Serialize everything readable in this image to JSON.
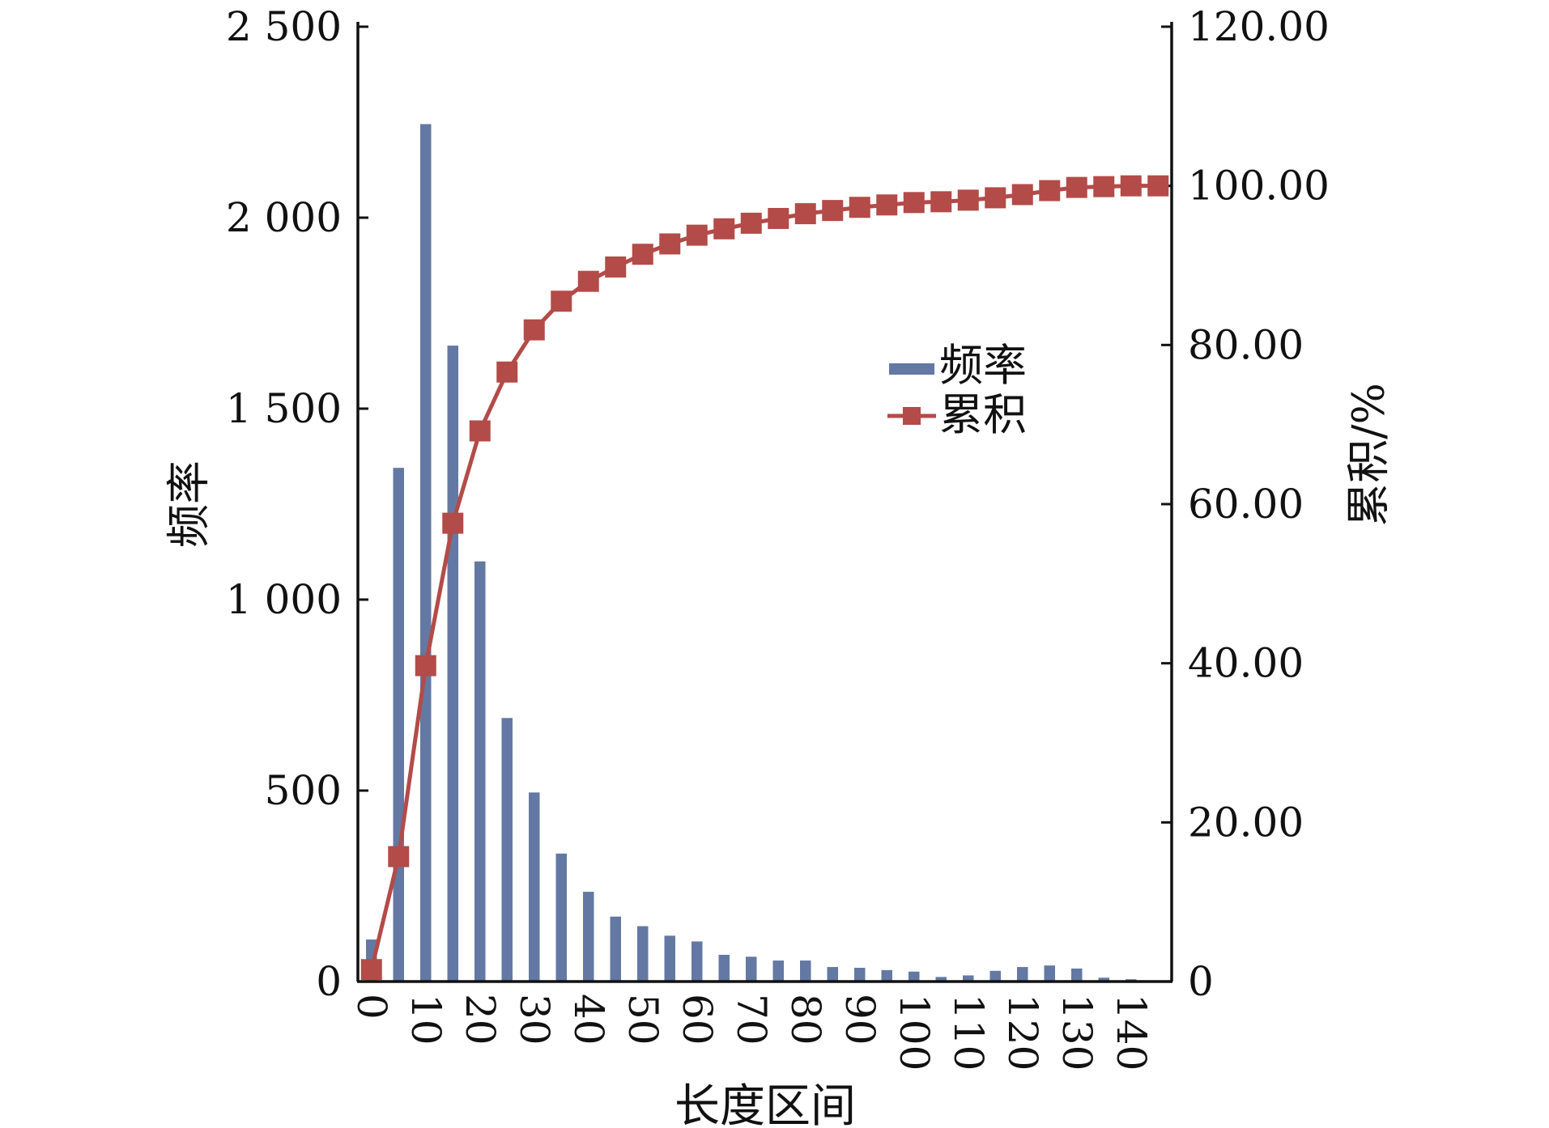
{
  "chart_data": {
    "type": "bar+line",
    "title": "",
    "x": [
      0,
      5,
      10,
      15,
      20,
      25,
      30,
      35,
      40,
      45,
      50,
      55,
      60,
      65,
      70,
      75,
      80,
      85,
      90,
      95,
      100,
      105,
      110,
      115,
      120,
      125,
      130,
      135,
      140,
      145
    ],
    "x_tick_labels": [
      "0",
      "10",
      "20",
      "30",
      "40",
      "50",
      "60",
      "70",
      "80",
      "90",
      "100",
      "110",
      "120",
      "130",
      "140"
    ],
    "xlabel": "长度区间",
    "ylabel": "频率",
    "y2label": "累积/%",
    "ylim": [
      0,
      2500
    ],
    "y2lim": [
      0,
      120
    ],
    "y_tick_labels": [
      "0",
      "500",
      "1 000",
      "1 500",
      "2 000",
      "2 500"
    ],
    "y2_tick_labels": [
      "0",
      "20.00",
      "40.00",
      "60.00",
      "80.00",
      "100.00",
      "120.00"
    ],
    "legend_position": "middle-right",
    "grid": false,
    "series": [
      {
        "name": "频率",
        "type": "bar",
        "axis": "left",
        "color": "#6379A3",
        "values": [
          110,
          1345,
          2245,
          1665,
          1100,
          690,
          495,
          335,
          235,
          170,
          145,
          120,
          105,
          70,
          65,
          55,
          55,
          38,
          36,
          30,
          26,
          12,
          16,
          28,
          38,
          42,
          34,
          10,
          6,
          0
        ]
      },
      {
        "name": "累积",
        "type": "line",
        "axis": "right",
        "color": "#B34B48",
        "values": [
          1.5,
          15.7,
          39.7,
          57.6,
          69.2,
          76.6,
          81.9,
          85.5,
          88.0,
          89.8,
          91.4,
          92.7,
          93.8,
          94.6,
          95.3,
          95.9,
          96.5,
          96.9,
          97.3,
          97.6,
          97.9,
          98.0,
          98.2,
          98.5,
          98.9,
          99.4,
          99.8,
          99.9,
          100.0,
          100.0
        ]
      }
    ]
  }
}
